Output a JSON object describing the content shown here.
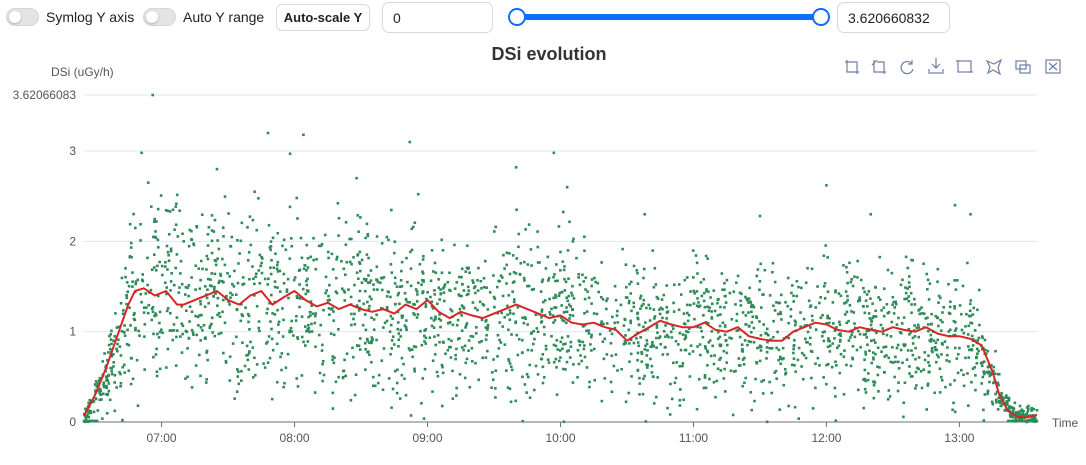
{
  "controls": {
    "symlog_label": "Symlog Y axis",
    "symlog_on": false,
    "auto_y_label": "Auto Y range",
    "auto_y_on": false,
    "autoscale_label": "Auto-scale Y",
    "y_min_value": "0",
    "y_max_value": "3.620660832",
    "slider_range": [
      0,
      1
    ],
    "accent_color": "#0d6efd"
  },
  "toolbox_icons": [
    "zoom-icon",
    "zoom-reset-icon",
    "restore-icon",
    "download-icon",
    "rect-select-icon",
    "lasso-select-icon",
    "keep-select-icon",
    "clear-select-icon"
  ],
  "chart_data": {
    "type": "scatter",
    "title": "DSi evolution",
    "ylabel": "DSi (uGy/h)",
    "xlabel": "Time",
    "x_range": [
      "06:25",
      "13:35"
    ],
    "ylim": [
      0,
      3.62066083
    ],
    "y_ticks": [
      0,
      1,
      2,
      3
    ],
    "y_max_label": "3.62066083",
    "x_ticks": [
      "07:00",
      "08:00",
      "09:00",
      "10:00",
      "11:00",
      "12:00",
      "13:00"
    ],
    "grid": true,
    "colors": {
      "points": "#2e8b57",
      "line": "#d62728"
    },
    "series": [
      {
        "kind": "points",
        "n_points": 2600,
        "mean_profile": [
          [
            "06:25",
            0.05
          ],
          [
            "06:30",
            0.25
          ],
          [
            "06:40",
            0.7
          ],
          [
            "06:45",
            1.15
          ],
          [
            "06:50",
            1.4
          ],
          [
            "06:55",
            1.45
          ],
          [
            "07:00",
            1.45
          ],
          [
            "07:30",
            1.38
          ],
          [
            "08:00",
            1.35
          ],
          [
            "08:30",
            1.25
          ],
          [
            "09:00",
            1.25
          ],
          [
            "09:30",
            1.15
          ],
          [
            "10:00",
            1.15
          ],
          [
            "10:30",
            1.0
          ],
          [
            "11:00",
            1.05
          ],
          [
            "11:30",
            0.95
          ],
          [
            "12:00",
            1.05
          ],
          [
            "12:30",
            1.0
          ],
          [
            "13:00",
            0.95
          ],
          [
            "13:10",
            0.85
          ],
          [
            "13:15",
            0.5
          ],
          [
            "13:20",
            0.2
          ],
          [
            "13:25",
            0.08
          ],
          [
            "13:35",
            0.05
          ]
        ],
        "outliers": [
          [
            "06:56",
            3.62
          ],
          [
            "06:51",
            2.98
          ],
          [
            "06:54",
            2.65
          ],
          [
            "07:10",
            2.0
          ],
          [
            "07:25",
            2.8
          ],
          [
            "07:48",
            3.2
          ],
          [
            "07:58",
            2.97
          ],
          [
            "08:04",
            3.18
          ],
          [
            "08:28",
            2.7
          ],
          [
            "08:52",
            3.1
          ],
          [
            "09:40",
            2.82
          ],
          [
            "09:57",
            2.98
          ],
          [
            "10:03",
            2.6
          ],
          [
            "10:38",
            2.3
          ],
          [
            "11:30",
            2.28
          ],
          [
            "12:00",
            2.62
          ],
          [
            "12:20",
            2.3
          ],
          [
            "12:58",
            2.4
          ],
          [
            "13:05",
            2.3
          ]
        ]
      },
      {
        "kind": "line",
        "points": [
          [
            "06:25",
            0.07
          ],
          [
            "06:30",
            0.3
          ],
          [
            "06:35",
            0.6
          ],
          [
            "06:40",
            0.95
          ],
          [
            "06:45",
            1.3
          ],
          [
            "06:48",
            1.45
          ],
          [
            "06:52",
            1.48
          ],
          [
            "06:57",
            1.4
          ],
          [
            "07:02",
            1.45
          ],
          [
            "07:07",
            1.3
          ],
          [
            "07:10",
            1.3
          ],
          [
            "07:15",
            1.35
          ],
          [
            "07:20",
            1.4
          ],
          [
            "07:25",
            1.45
          ],
          [
            "07:30",
            1.35
          ],
          [
            "07:35",
            1.3
          ],
          [
            "07:40",
            1.4
          ],
          [
            "07:45",
            1.45
          ],
          [
            "07:50",
            1.3
          ],
          [
            "07:55",
            1.38
          ],
          [
            "08:00",
            1.45
          ],
          [
            "08:05",
            1.35
          ],
          [
            "08:10",
            1.28
          ],
          [
            "08:15",
            1.32
          ],
          [
            "08:20",
            1.25
          ],
          [
            "08:25",
            1.3
          ],
          [
            "08:30",
            1.25
          ],
          [
            "08:35",
            1.22
          ],
          [
            "08:40",
            1.25
          ],
          [
            "08:45",
            1.2
          ],
          [
            "08:50",
            1.3
          ],
          [
            "08:55",
            1.25
          ],
          [
            "09:00",
            1.35
          ],
          [
            "09:05",
            1.22
          ],
          [
            "09:10",
            1.15
          ],
          [
            "09:15",
            1.22
          ],
          [
            "09:20",
            1.18
          ],
          [
            "09:25",
            1.15
          ],
          [
            "09:30",
            1.2
          ],
          [
            "09:35",
            1.25
          ],
          [
            "09:40",
            1.3
          ],
          [
            "09:45",
            1.25
          ],
          [
            "09:50",
            1.2
          ],
          [
            "09:55",
            1.15
          ],
          [
            "10:00",
            1.18
          ],
          [
            "10:05",
            1.1
          ],
          [
            "10:10",
            1.08
          ],
          [
            "10:15",
            1.1
          ],
          [
            "10:20",
            1.05
          ],
          [
            "10:25",
            1.02
          ],
          [
            "10:30",
            0.9
          ],
          [
            "10:35",
            0.98
          ],
          [
            "10:40",
            1.05
          ],
          [
            "10:45",
            1.12
          ],
          [
            "10:50",
            1.08
          ],
          [
            "10:55",
            1.05
          ],
          [
            "11:00",
            1.05
          ],
          [
            "11:05",
            1.1
          ],
          [
            "11:10",
            1.02
          ],
          [
            "11:15",
            1.0
          ],
          [
            "11:20",
            1.05
          ],
          [
            "11:25",
            0.95
          ],
          [
            "11:30",
            0.92
          ],
          [
            "11:35",
            0.9
          ],
          [
            "11:40",
            0.9
          ],
          [
            "11:45",
            1.0
          ],
          [
            "11:50",
            1.05
          ],
          [
            "11:55",
            1.1
          ],
          [
            "12:00",
            1.08
          ],
          [
            "12:05",
            1.02
          ],
          [
            "12:10",
            1.0
          ],
          [
            "12:15",
            1.05
          ],
          [
            "12:20",
            1.02
          ],
          [
            "12:25",
            1.0
          ],
          [
            "12:30",
            1.05
          ],
          [
            "12:35",
            1.02
          ],
          [
            "12:40",
            1.0
          ],
          [
            "12:45",
            1.05
          ],
          [
            "12:50",
            0.98
          ],
          [
            "12:55",
            0.95
          ],
          [
            "13:00",
            0.95
          ],
          [
            "13:05",
            0.92
          ],
          [
            "13:10",
            0.85
          ],
          [
            "13:15",
            0.55
          ],
          [
            "13:18",
            0.3
          ],
          [
            "13:22",
            0.12
          ],
          [
            "13:26",
            0.06
          ],
          [
            "13:30",
            0.05
          ],
          [
            "13:35",
            0.08
          ]
        ]
      }
    ]
  }
}
